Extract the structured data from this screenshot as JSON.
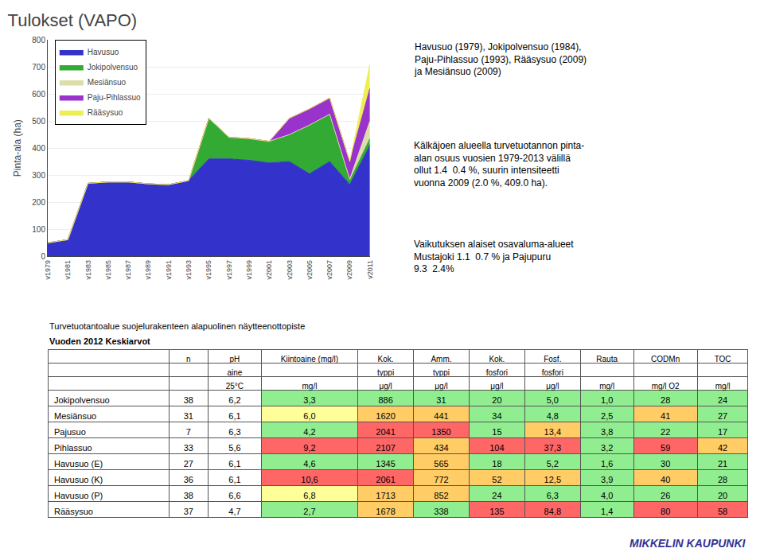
{
  "chart_data": [
    {
      "type": "area",
      "title": "Tulokset (VAPO)",
      "ylabel": "Pinta-ala (ha)",
      "categories": [
        "v1979",
        "v1981",
        "v1983",
        "v1985",
        "v1987",
        "v1989",
        "v1991",
        "v1993",
        "v1995",
        "v1997",
        "v1999",
        "v2001",
        "v2003",
        "v2005",
        "v2007",
        "v2009",
        "v2011"
      ],
      "series": [
        {
          "name": "Havusuo",
          "color": "#3333cc",
          "values": [
            50,
            62,
            270,
            275,
            275,
            268,
            265,
            280,
            360,
            360,
            355,
            345,
            350,
            305,
            350,
            265,
            410
          ]
        },
        {
          "name": "Jokipolvensuo",
          "color": "#33aa33",
          "values": [
            0,
            0,
            0,
            0,
            0,
            0,
            0,
            0,
            150,
            80,
            80,
            80,
            100,
            180,
            175,
            15,
            25
          ]
        },
        {
          "name": "Mesiänsuo",
          "color": "#ddddaa",
          "values": [
            0,
            0,
            0,
            0,
            0,
            0,
            0,
            0,
            0,
            0,
            0,
            0,
            0,
            0,
            0,
            5,
            65
          ]
        },
        {
          "name": "Paju-Pihlassuo",
          "color": "#9933cc",
          "values": [
            0,
            0,
            0,
            0,
            0,
            0,
            0,
            0,
            0,
            0,
            0,
            0,
            60,
            60,
            60,
            65,
            120
          ]
        },
        {
          "name": "Rääsysuo",
          "color": "#eeee55",
          "values": [
            0,
            0,
            0,
            0,
            0,
            0,
            0,
            0,
            0,
            0,
            0,
            0,
            0,
            0,
            0,
            0,
            90
          ]
        }
      ],
      "stacked": true,
      "ylim": [
        0,
        800
      ],
      "yticks": [
        0,
        100,
        200,
        300,
        400,
        500,
        600,
        700,
        800
      ],
      "grid": true,
      "legend": "upper left",
      "annotations": [
        "Havusuo (1979), Jokipolvensuo (1984),\nPaju-Pihlassuo (1993), Rääsysuo (2009)\nja Mesiänsuo (2009)",
        "Kälkäjoen alueella turvetuotannon pinta-\nalan osuus vuosien 1979-2013 välillä\nollut 1.4  0.4 %, suurin intensiteetti\nvuonna 2009 (2.0 %, 409.0 ha).",
        "Vaikutuksen alaiset osavaluma-alueet\nMustajoki 1.1  0.7 % ja Pajupuru\n9.3  2.4%"
      ]
    },
    {
      "type": "table",
      "title": "Turvetuotantoalue suojelurakenteen alapuolinen näytteenottopiste",
      "subtitle": "Vuoden 2012 Keskiarvot",
      "header": [
        [
          null,
          "n",
          "pH",
          "Kiintoaine (mg/l)",
          "Kok.",
          "Amm.",
          "Kok.",
          "Fosf.",
          "Rauta",
          "CODMn",
          "TOC"
        ],
        [
          null,
          null,
          "aine",
          null,
          "typpi",
          "typpi",
          "fosfori",
          "fosfori",
          null,
          null,
          null
        ],
        [
          null,
          null,
          "25°C",
          "mg/l",
          "μg/l",
          "μg/l",
          "μg/l",
          "μg/l",
          "mg/l",
          "mg/l O2",
          "mg/l"
        ]
      ],
      "rows": [
        [
          "Jokipolvensuo",
          "38",
          "6,2",
          "3,3",
          "886",
          "31",
          "20",
          "5,0",
          "1,0",
          "28",
          "24"
        ],
        [
          "Mesiänsuo",
          "31",
          "6,1",
          "6,0",
          "1620",
          "441",
          "34",
          "4,8",
          "2,5",
          "41",
          "27"
        ],
        [
          "Pajusuo",
          "7",
          "6,3",
          "4,2",
          "2041",
          "1350",
          "15",
          "13,4",
          "3,8",
          "22",
          "17"
        ],
        [
          "Pihlassuo",
          "33",
          "5,6",
          "9,2",
          "2107",
          "434",
          "104",
          "37,3",
          "3,2",
          "59",
          "42"
        ],
        [
          "Havusuo (E)",
          "27",
          "6,1",
          "4,6",
          "1345",
          "565",
          "18",
          "5,2",
          "1,6",
          "30",
          "21"
        ],
        [
          "Havusuo (K)",
          "36",
          "6,1",
          "10,6",
          "2061",
          "772",
          "52",
          "12,5",
          "3,9",
          "40",
          "28"
        ],
        [
          "Havusuo (P)",
          "38",
          "6,6",
          "6,8",
          "1713",
          "852",
          "24",
          "6,3",
          "4,0",
          "26",
          "20"
        ],
        [
          "Rääsysuo",
          "37",
          "4,7",
          "2,7",
          "1678",
          "338",
          "135",
          "84,8",
          "1,4",
          "80",
          "58"
        ]
      ],
      "colors": [
        [
          null,
          null,
          null,
          "#90ee90",
          "#90ee90",
          "#90ee90",
          "#90ee90",
          "#90ee90",
          "#90ee90",
          "#90ee90",
          "#90ee90"
        ],
        [
          null,
          null,
          null,
          "#ffff99",
          "#ffcc66",
          "#ffcc66",
          "#90ee90",
          "#90ee90",
          "#90ee90",
          "#ffcc66",
          "#90ee90"
        ],
        [
          null,
          null,
          null,
          "#90ee90",
          "#ff6666",
          "#ff6666",
          "#90ee90",
          "#ffcc66",
          "#90ee90",
          "#90ee90",
          "#90ee90"
        ],
        [
          null,
          null,
          null,
          "#ff6666",
          "#ff6666",
          "#ffcc66",
          "#ff6666",
          "#ff6666",
          "#90ee90",
          "#ff6666",
          "#ffcc66"
        ],
        [
          null,
          null,
          null,
          "#90ee90",
          "#90ee90",
          "#ffcc66",
          "#90ee90",
          "#90ee90",
          "#90ee90",
          "#90ee90",
          "#90ee90"
        ],
        [
          null,
          null,
          null,
          "#ff6666",
          "#ff6666",
          "#ffcc66",
          "#ffcc66",
          "#ffcc66",
          "#90ee90",
          "#ffcc66",
          "#90ee90"
        ],
        [
          null,
          null,
          null,
          "#ffff99",
          "#ffcc66",
          "#ffcc66",
          "#90ee90",
          "#90ee90",
          "#90ee90",
          "#90ee90",
          "#90ee90"
        ],
        [
          null,
          null,
          null,
          "#90ee90",
          "#ffcc66",
          "#90ee90",
          "#ff6666",
          "#ff6666",
          "#90ee90",
          "#ff6666",
          "#ff6666"
        ]
      ],
      "annotations": [
        "MIKKELIN KAUPUNKI"
      ]
    }
  ]
}
